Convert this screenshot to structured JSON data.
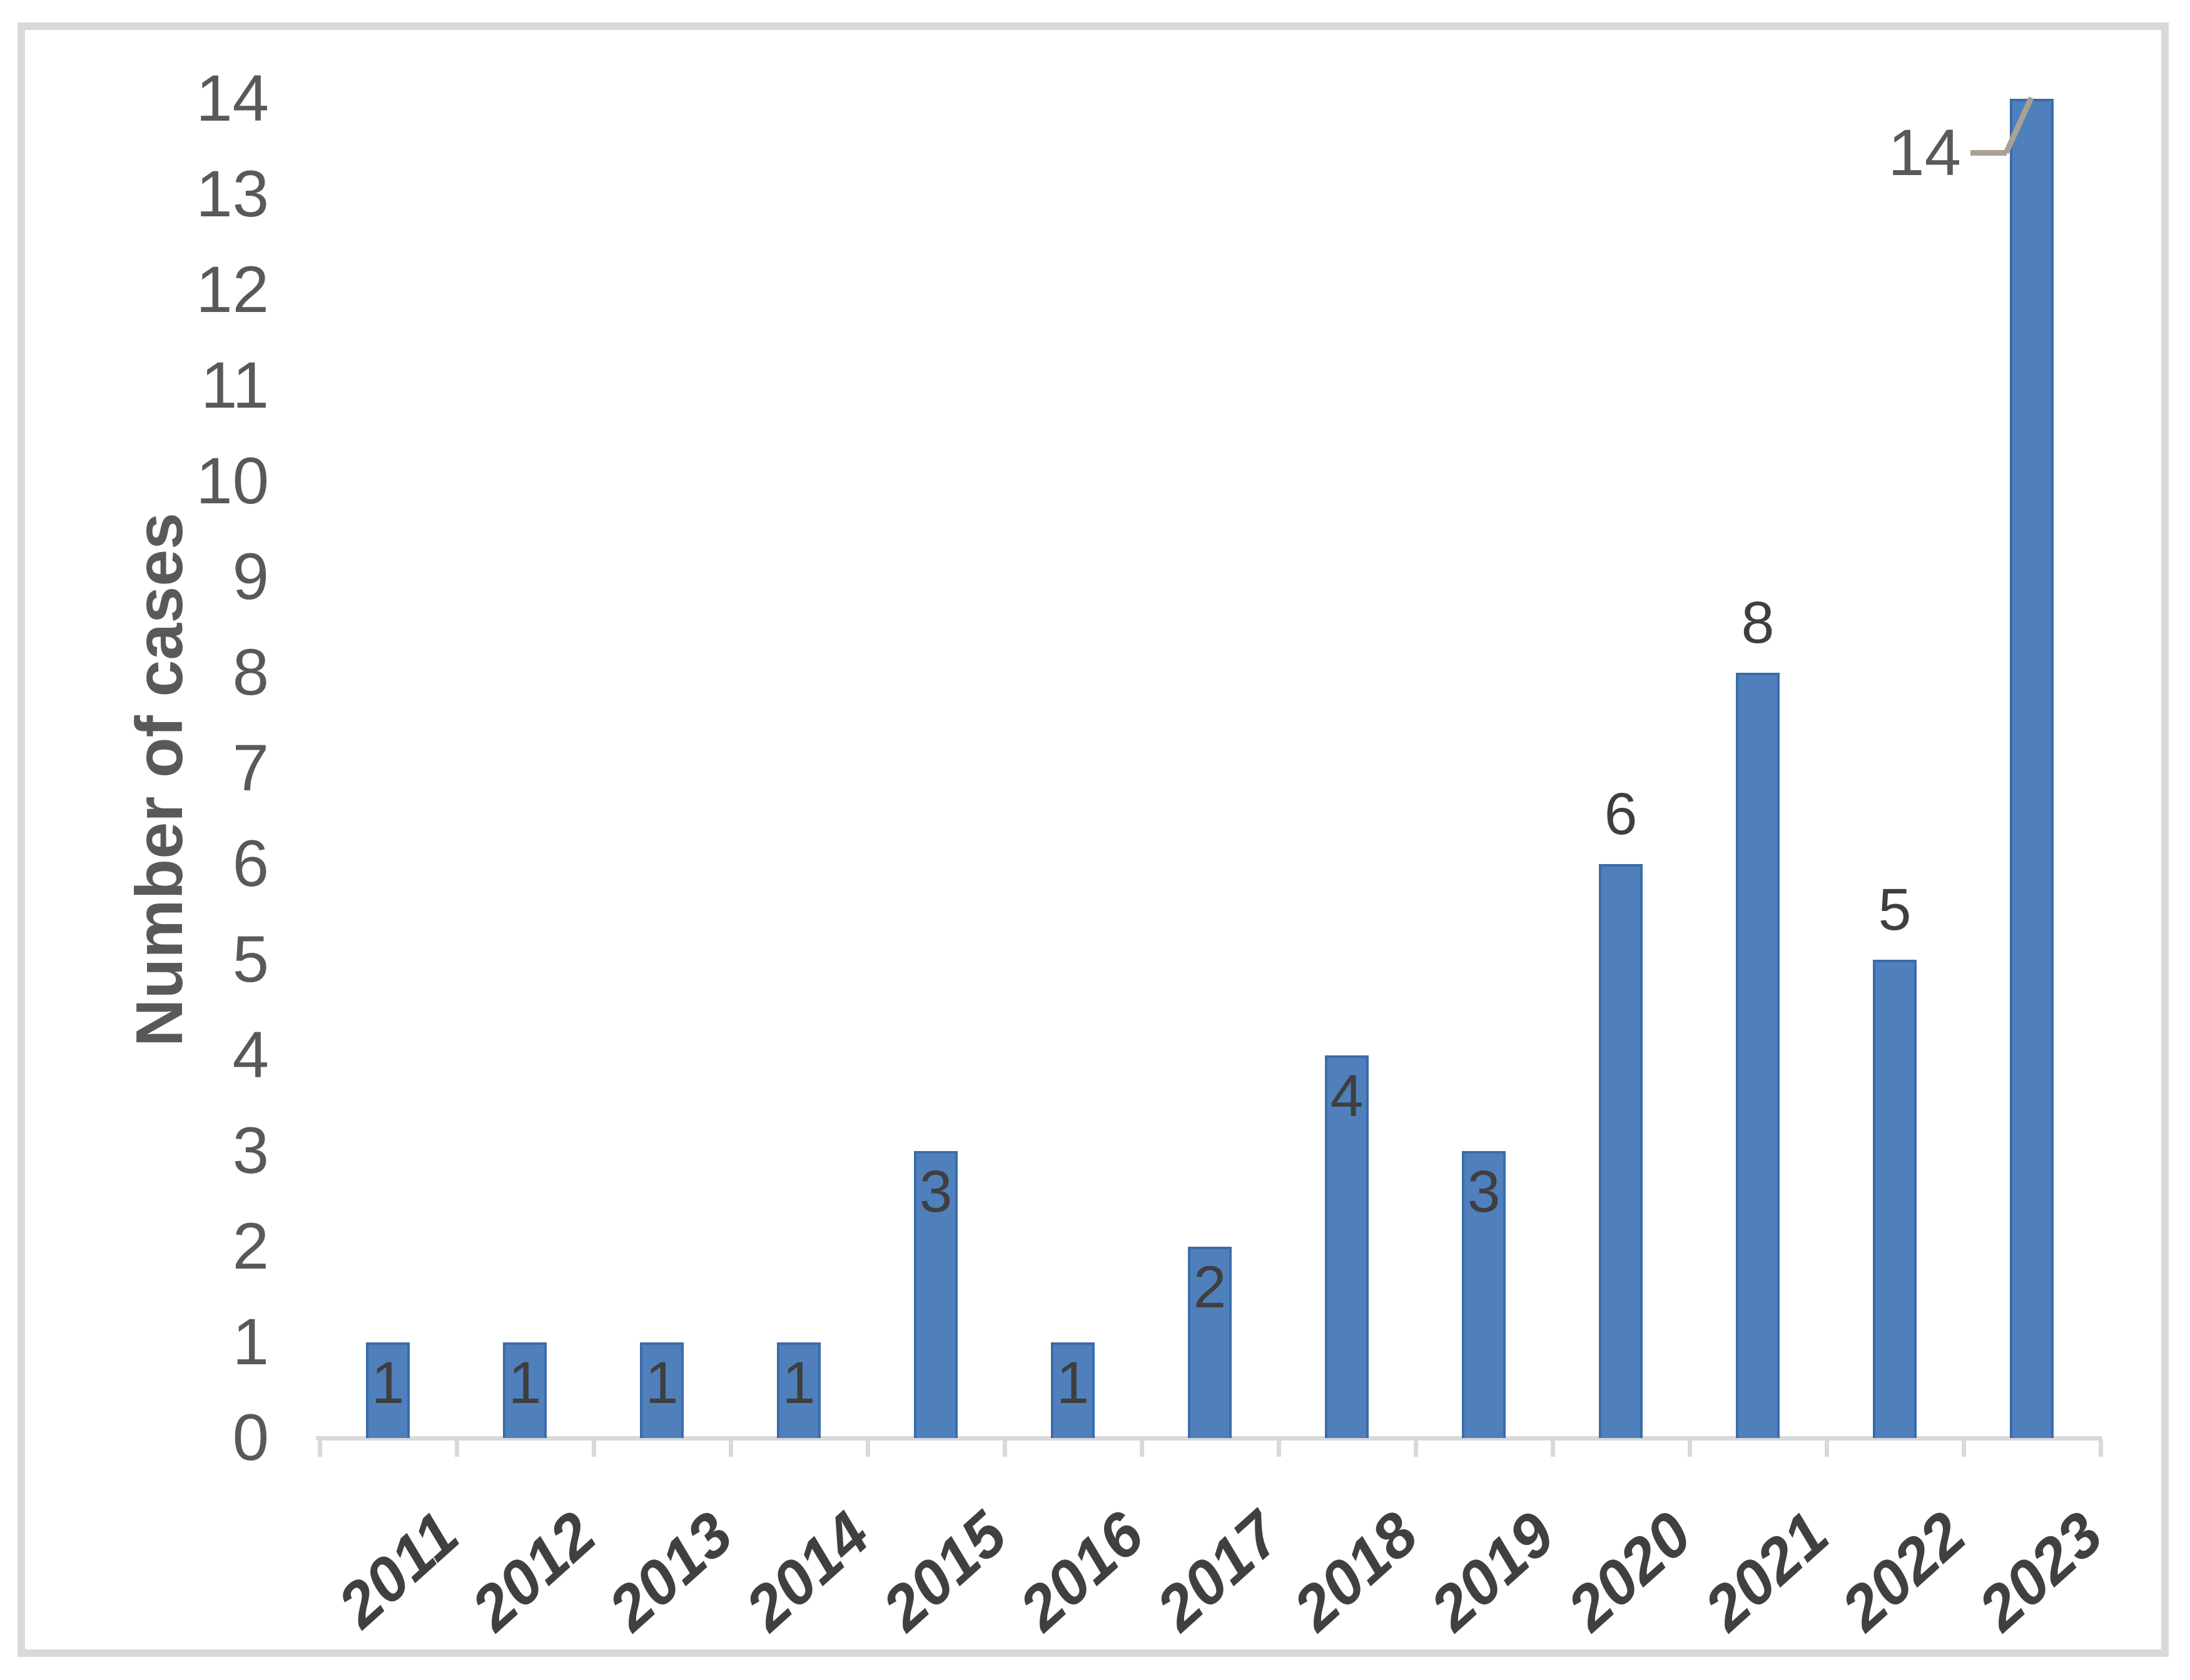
{
  "chart_data": {
    "type": "bar",
    "title": "",
    "ylabel": "Number of cases",
    "xlabel": "",
    "categories": [
      "2011",
      "2012",
      "2013",
      "2014",
      "2015",
      "2016",
      "2017",
      "2018",
      "2019",
      "2020",
      "2021",
      "2022",
      "2023"
    ],
    "values": [
      1,
      1,
      1,
      1,
      3,
      1,
      2,
      4,
      3,
      6,
      8,
      5,
      14
    ],
    "data_labels": [
      "1",
      "1",
      "1",
      "1",
      "3",
      "1",
      "2",
      "4",
      "3",
      "6",
      "8",
      "5",
      "14"
    ],
    "label_positions": [
      "inside",
      "inside",
      "inside",
      "inside",
      "inside",
      "inside",
      "inside",
      "inside",
      "inside",
      "above",
      "above",
      "above",
      "callout"
    ],
    "yticks": [
      "0",
      "1",
      "2",
      "3",
      "4",
      "5",
      "6",
      "7",
      "8",
      "9",
      "10",
      "11",
      "12",
      "13",
      "14"
    ],
    "ylim": [
      0,
      14
    ],
    "grid": false,
    "legend": "none",
    "colors": {
      "bar_fill": "#4f80bc",
      "bar_edge": "#3a6cab",
      "axis_line": "#d9d9d9",
      "y_tick_text": "#595959",
      "x_tick_text": "#404040",
      "data_label_text": "#3f3f3f",
      "axis_title_text": "#595959",
      "callout_line": "#a9a198",
      "frame_border": "#d9d9d9",
      "background": "#ffffff"
    }
  }
}
